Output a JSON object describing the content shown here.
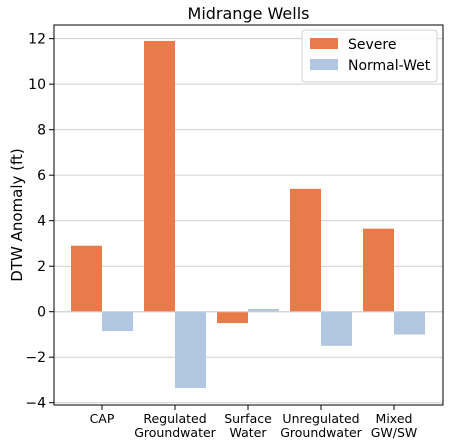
{
  "chart_data": {
    "type": "bar",
    "title": "Midrange Wells",
    "xlabel": "",
    "ylabel": "DTW Anomaly (ft)",
    "ylim": [
      -4.1,
      12.6
    ],
    "yticks": [
      -4,
      -2,
      0,
      2,
      4,
      6,
      8,
      10,
      12
    ],
    "ytick_labels": [
      "−4",
      "−2",
      "0",
      "2",
      "4",
      "6",
      "8",
      "10",
      "12"
    ],
    "grid": "horizontal",
    "legend_position": "top-right",
    "categories": [
      [
        "CAP"
      ],
      [
        "Regulated",
        "Groundwater"
      ],
      [
        "Surface",
        "Water"
      ],
      [
        "Unregulated",
        "Groundwater"
      ],
      [
        "Mixed",
        "GW/SW"
      ]
    ],
    "series": [
      {
        "name": "Severe",
        "color": "#E97B4A",
        "values": [
          2.9,
          11.9,
          -0.5,
          5.4,
          3.65
        ]
      },
      {
        "name": "Normal-Wet",
        "color": "#B1C6E0",
        "values": [
          -0.85,
          -3.35,
          0.12,
          -1.5,
          -1.0
        ]
      }
    ]
  }
}
